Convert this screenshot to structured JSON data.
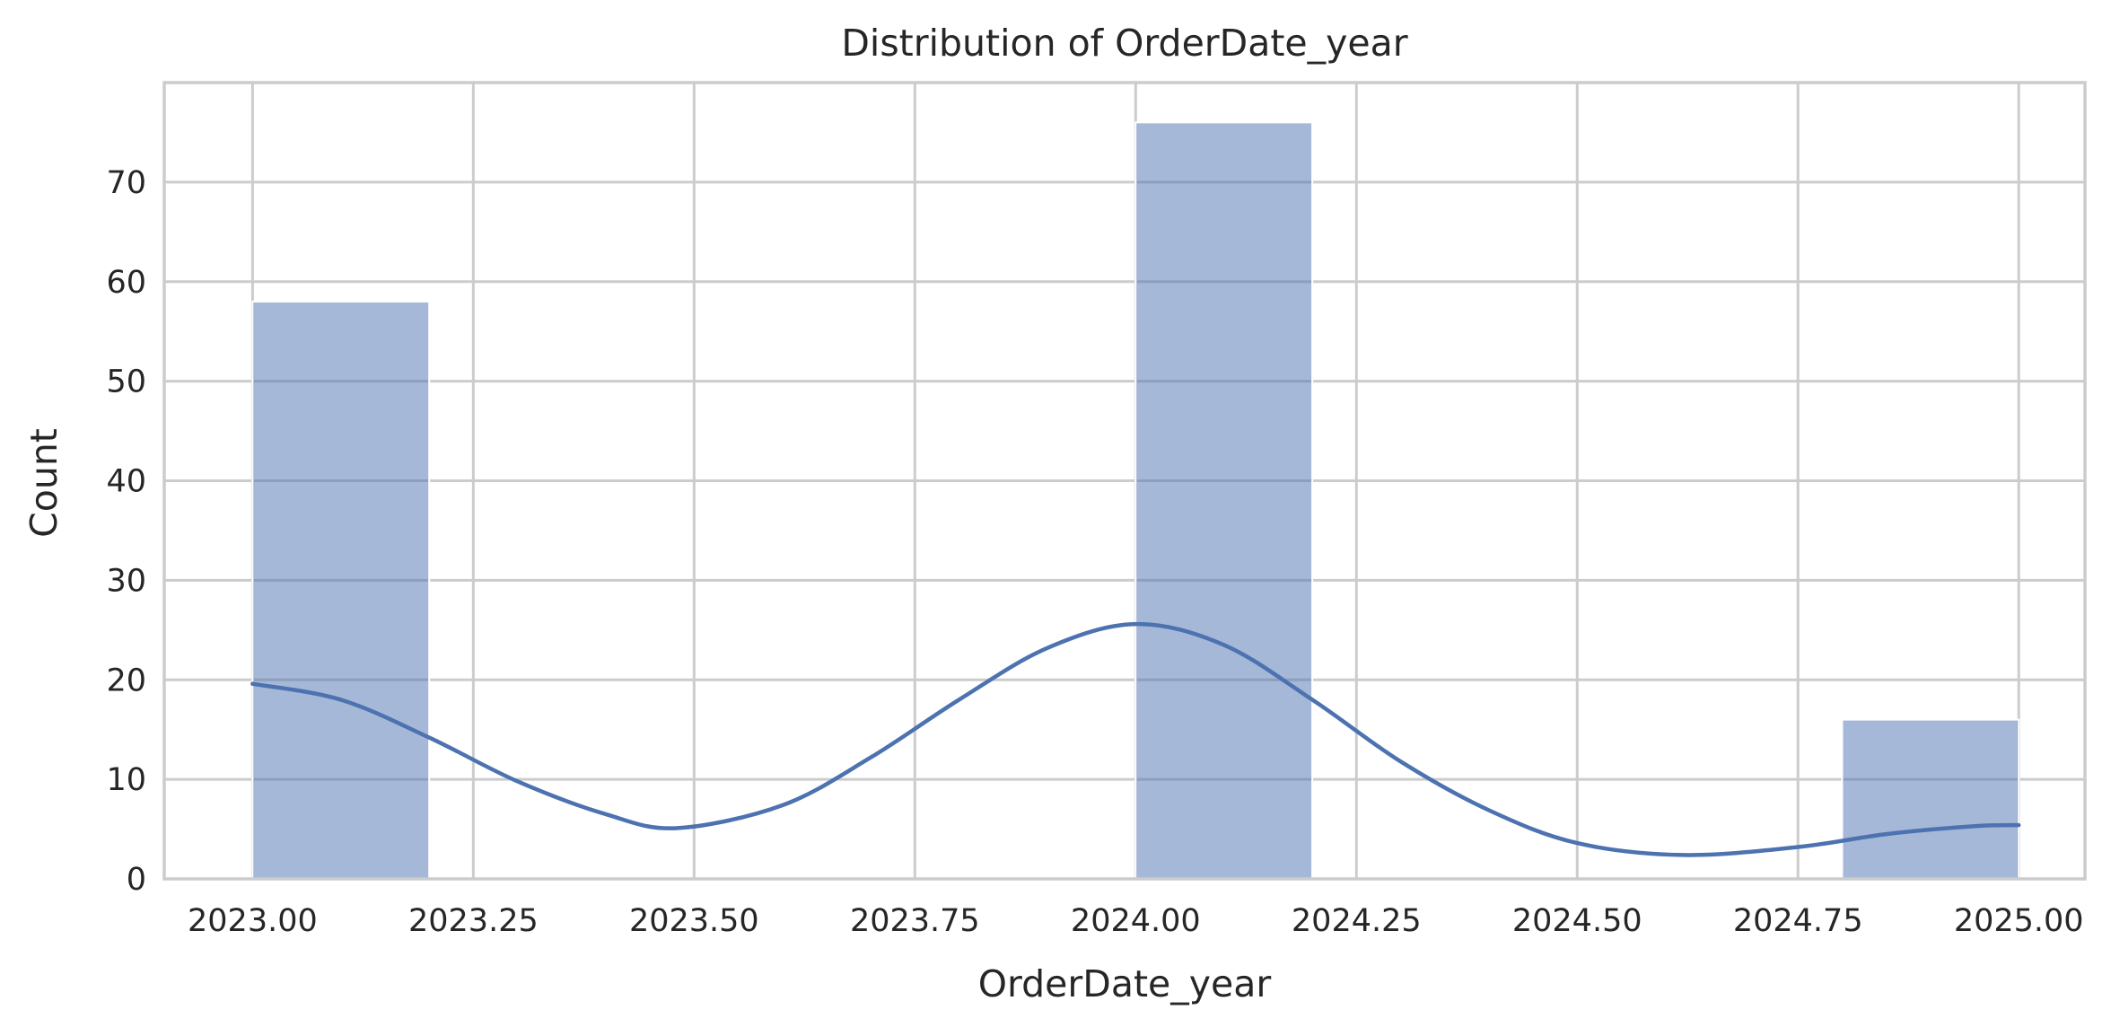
{
  "chart_data": {
    "type": "bar",
    "subtype": "histogram-with-kde",
    "title": "Distribution of OrderDate_year",
    "xlabel": "OrderDate_year",
    "ylabel": "Count",
    "xlim": [
      2022.9,
      2025.075
    ],
    "ylim": [
      0,
      80
    ],
    "xticks": [
      2023.0,
      2023.25,
      2023.5,
      2023.75,
      2024.0,
      2024.25,
      2024.5,
      2024.75,
      2025.0
    ],
    "xtick_labels": [
      "2023.00",
      "2023.25",
      "2023.50",
      "2023.75",
      "2024.00",
      "2024.25",
      "2024.50",
      "2024.75",
      "2025.00"
    ],
    "yticks": [
      0,
      10,
      20,
      30,
      40,
      50,
      60,
      70
    ],
    "ytick_labels": [
      "0",
      "10",
      "20",
      "30",
      "40",
      "50",
      "60",
      "70"
    ],
    "grid": true,
    "bins": [
      {
        "x0": 2023.0,
        "x1": 2023.2,
        "count": 58
      },
      {
        "x0": 2023.2,
        "x1": 2023.4,
        "count": 0
      },
      {
        "x0": 2023.4,
        "x1": 2023.6,
        "count": 0
      },
      {
        "x0": 2023.6,
        "x1": 2023.8,
        "count": 0
      },
      {
        "x0": 2023.8,
        "x1": 2024.0,
        "count": 0
      },
      {
        "x0": 2024.0,
        "x1": 2024.2,
        "count": 76
      },
      {
        "x0": 2024.2,
        "x1": 2024.4,
        "count": 0
      },
      {
        "x0": 2024.4,
        "x1": 2024.6,
        "count": 0
      },
      {
        "x0": 2024.6,
        "x1": 2024.8,
        "count": 0
      },
      {
        "x0": 2024.8,
        "x1": 2025.0,
        "count": 16
      }
    ],
    "kde": {
      "x": [
        2023.0,
        2023.1,
        2023.2,
        2023.3,
        2023.4,
        2023.48,
        2023.6,
        2023.7,
        2023.8,
        2023.9,
        2024.0,
        2024.1,
        2024.2,
        2024.3,
        2024.4,
        2024.5,
        2024.62,
        2024.75,
        2024.85,
        2024.95,
        2025.0
      ],
      "y": [
        19.6,
        18.0,
        14.2,
        9.8,
        6.5,
        5.1,
        7.4,
        12.2,
        18.0,
        23.2,
        25.6,
        23.5,
        18.0,
        11.8,
        6.9,
        3.6,
        2.4,
        3.2,
        4.5,
        5.3,
        5.4
      ]
    },
    "colors": {
      "bar_fill": "#4c72b0",
      "bar_opacity": "0.5",
      "kde_line": "#4c72b0"
    }
  }
}
